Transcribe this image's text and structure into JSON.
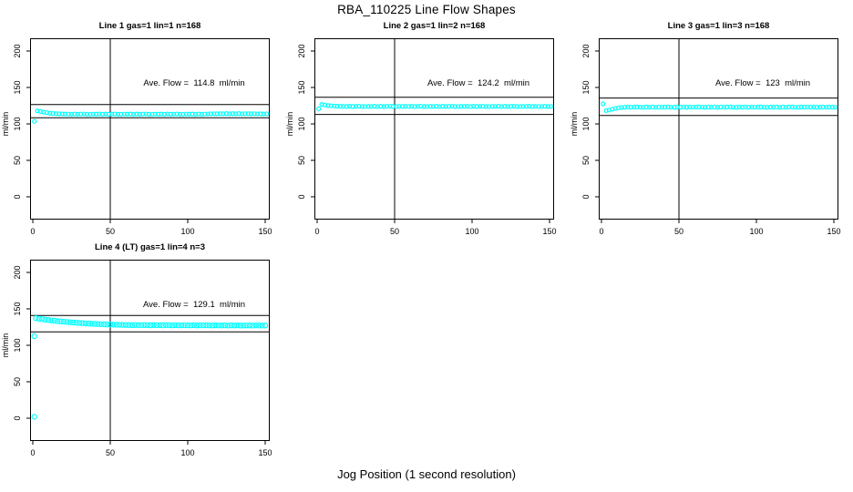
{
  "page_title": "RBA_110225  Line Flow Shapes",
  "x_axis_label": "Jog Position (1 second resolution)",
  "colors": {
    "point_color": "#00FFFF",
    "line_color": "#000000",
    "background": "#FFFFFF",
    "text_color": "#000000"
  },
  "chart_data": [
    {
      "type": "scatter",
      "title": "Line 1 gas=1 lin=1 n=168",
      "ave_flow_label": "Ave. Flow =  114.8  ml/min",
      "ave_flow_ml_min": 114.8,
      "ylabel": "ml/min",
      "xlim": [
        0,
        150
      ],
      "ylim": [
        0,
        200
      ],
      "xticks": [
        0,
        50,
        100,
        150
      ],
      "yticks": [
        0,
        50,
        100,
        150,
        200
      ],
      "vline_x": 50,
      "hlines": [
        126.5,
        108.5
      ],
      "marker": "open-circle",
      "marker_size_px": 2,
      "legend": "none",
      "grid": "off",
      "points": [
        [
          1,
          103.5
        ],
        [
          3,
          118.0
        ],
        [
          5,
          117.0
        ],
        [
          7,
          116.1
        ],
        [
          9,
          115.4
        ],
        [
          11,
          114.8
        ],
        [
          13,
          114.4
        ],
        [
          15,
          114.1
        ],
        [
          17,
          113.9
        ],
        [
          19,
          113.7
        ],
        [
          21,
          113.6
        ],
        [
          23,
          113.5
        ],
        [
          25,
          113.2
        ],
        [
          27,
          113.6
        ],
        [
          29,
          113.3
        ],
        [
          31,
          113.5
        ],
        [
          33,
          113.7
        ],
        [
          35,
          113.3
        ],
        [
          37,
          113.2
        ],
        [
          39,
          113.5
        ],
        [
          41,
          113.4
        ],
        [
          43,
          113.6
        ],
        [
          45,
          113.2
        ],
        [
          47,
          113.6
        ],
        [
          49,
          113.3
        ],
        [
          51,
          113.5
        ],
        [
          53,
          113.7
        ],
        [
          55,
          113.3
        ],
        [
          57,
          113.2
        ],
        [
          59,
          113.5
        ],
        [
          61,
          113.4
        ],
        [
          63,
          113.6
        ],
        [
          65,
          113.2
        ],
        [
          67,
          113.6
        ],
        [
          69,
          113.3
        ],
        [
          71,
          113.5
        ],
        [
          73,
          113.7
        ],
        [
          75,
          113.3
        ],
        [
          77,
          113.2
        ],
        [
          79,
          113.5
        ],
        [
          81,
          113.4
        ],
        [
          83,
          113.6
        ],
        [
          85,
          113.2
        ],
        [
          87,
          113.6
        ],
        [
          89,
          113.3
        ],
        [
          91,
          113.5
        ],
        [
          93,
          113.7
        ],
        [
          95,
          113.3
        ],
        [
          97,
          113.2
        ],
        [
          99,
          113.5
        ],
        [
          101,
          113.4
        ],
        [
          103,
          113.6
        ],
        [
          105,
          113.2
        ],
        [
          107,
          113.6
        ],
        [
          109,
          113.3
        ],
        [
          111,
          113.5
        ],
        [
          113,
          113.7
        ],
        [
          115,
          113.8
        ],
        [
          117,
          114.0
        ],
        [
          119,
          113.9
        ],
        [
          121,
          114.1
        ],
        [
          123,
          114.0
        ],
        [
          125,
          114.2
        ],
        [
          127,
          113.9
        ],
        [
          129,
          114.1
        ],
        [
          131,
          114.0
        ],
        [
          133,
          114.2
        ],
        [
          135,
          113.8
        ],
        [
          137,
          114.0
        ],
        [
          139,
          114.1
        ],
        [
          141,
          113.9
        ],
        [
          143,
          114.0
        ],
        [
          145,
          113.8
        ],
        [
          147,
          113.9
        ],
        [
          149,
          113.7
        ],
        [
          151,
          113.8
        ]
      ]
    },
    {
      "type": "scatter",
      "title": "Line 2 gas=1 lin=2 n=168",
      "ave_flow_label": "Ave. Flow =  124.2  ml/min",
      "ave_flow_ml_min": 124.2,
      "ylabel": "ml/min",
      "xlim": [
        0,
        150
      ],
      "ylim": [
        0,
        200
      ],
      "xticks": [
        0,
        50,
        100,
        150
      ],
      "yticks": [
        0,
        50,
        100,
        150,
        200
      ],
      "vline_x": 50,
      "hlines": [
        136.5,
        113.0
      ],
      "marker": "open-circle",
      "marker_size_px": 2,
      "legend": "none",
      "grid": "off",
      "points": [
        [
          1,
          120.8
        ],
        [
          3,
          126.7
        ],
        [
          5,
          125.9
        ],
        [
          7,
          125.3
        ],
        [
          9,
          124.9
        ],
        [
          11,
          124.6
        ],
        [
          13,
          124.4
        ],
        [
          15,
          124.2
        ],
        [
          17,
          124.1
        ],
        [
          19,
          123.8
        ],
        [
          21,
          124.2
        ],
        [
          23,
          123.9
        ],
        [
          25,
          124.1
        ],
        [
          27,
          124.3
        ],
        [
          29,
          123.9
        ],
        [
          31,
          123.8
        ],
        [
          33,
          124.1
        ],
        [
          35,
          124.0
        ],
        [
          37,
          124.2
        ],
        [
          39,
          123.8
        ],
        [
          41,
          124.2
        ],
        [
          43,
          123.9
        ],
        [
          45,
          124.1
        ],
        [
          47,
          124.3
        ],
        [
          49,
          123.9
        ],
        [
          51,
          123.8
        ],
        [
          53,
          124.1
        ],
        [
          55,
          124.0
        ],
        [
          57,
          124.2
        ],
        [
          59,
          123.8
        ],
        [
          61,
          124.2
        ],
        [
          63,
          123.9
        ],
        [
          65,
          124.1
        ],
        [
          67,
          124.3
        ],
        [
          69,
          123.9
        ],
        [
          71,
          123.8
        ],
        [
          73,
          124.1
        ],
        [
          75,
          124.0
        ],
        [
          77,
          124.2
        ],
        [
          79,
          123.8
        ],
        [
          81,
          124.2
        ],
        [
          83,
          123.9
        ],
        [
          85,
          124.1
        ],
        [
          87,
          124.3
        ],
        [
          89,
          123.9
        ],
        [
          91,
          123.8
        ],
        [
          93,
          124.1
        ],
        [
          95,
          124.0
        ],
        [
          97,
          124.2
        ],
        [
          99,
          123.8
        ],
        [
          101,
          124.2
        ],
        [
          103,
          123.9
        ],
        [
          105,
          124.1
        ],
        [
          107,
          124.3
        ],
        [
          109,
          123.9
        ],
        [
          111,
          123.8
        ],
        [
          113,
          124.1
        ],
        [
          115,
          124.0
        ],
        [
          117,
          124.2
        ],
        [
          119,
          123.8
        ],
        [
          121,
          124.2
        ],
        [
          123,
          123.9
        ],
        [
          125,
          124.1
        ],
        [
          127,
          124.3
        ],
        [
          129,
          123.9
        ],
        [
          131,
          123.8
        ],
        [
          133,
          124.1
        ],
        [
          135,
          124.0
        ],
        [
          137,
          124.2
        ],
        [
          139,
          123.9
        ],
        [
          141,
          124.1
        ],
        [
          143,
          123.8
        ],
        [
          145,
          124.0
        ],
        [
          147,
          124.2
        ],
        [
          149,
          123.9
        ],
        [
          151,
          124.0
        ]
      ]
    },
    {
      "type": "scatter",
      "title": "Line 3 gas=1 lin=3 n=168",
      "ave_flow_label": "Ave. Flow =  123  ml/min",
      "ave_flow_ml_min": 123,
      "ylabel": "ml/min",
      "xlim": [
        0,
        150
      ],
      "ylim": [
        0,
        200
      ],
      "xticks": [
        0,
        50,
        100,
        150
      ],
      "yticks": [
        0,
        50,
        100,
        150,
        200
      ],
      "vline_x": 50,
      "hlines": [
        135.5,
        111.5
      ],
      "marker": "open-circle",
      "marker_size_px": 2,
      "legend": "none",
      "grid": "off",
      "points": [
        [
          1,
          127.5
        ],
        [
          3,
          118.2
        ],
        [
          5,
          119.0
        ],
        [
          7,
          120.2
        ],
        [
          9,
          121.3
        ],
        [
          11,
          122.1
        ],
        [
          13,
          122.6
        ],
        [
          15,
          122.8
        ],
        [
          17,
          123.2
        ],
        [
          19,
          122.9
        ],
        [
          21,
          123.1
        ],
        [
          23,
          123.3
        ],
        [
          25,
          122.9
        ],
        [
          27,
          122.8
        ],
        [
          29,
          123.1
        ],
        [
          31,
          123.0
        ],
        [
          33,
          123.2
        ],
        [
          35,
          122.8
        ],
        [
          37,
          123.2
        ],
        [
          39,
          122.9
        ],
        [
          41,
          123.1
        ],
        [
          43,
          123.3
        ],
        [
          45,
          122.9
        ],
        [
          47,
          122.8
        ],
        [
          49,
          123.1
        ],
        [
          51,
          123.0
        ],
        [
          53,
          123.2
        ],
        [
          55,
          122.8
        ],
        [
          57,
          123.2
        ],
        [
          59,
          122.9
        ],
        [
          61,
          123.1
        ],
        [
          63,
          123.3
        ],
        [
          65,
          122.9
        ],
        [
          67,
          122.8
        ],
        [
          69,
          123.1
        ],
        [
          71,
          123.0
        ],
        [
          73,
          123.2
        ],
        [
          75,
          122.8
        ],
        [
          77,
          123.2
        ],
        [
          79,
          122.9
        ],
        [
          81,
          123.1
        ],
        [
          83,
          123.3
        ],
        [
          85,
          122.9
        ],
        [
          87,
          122.8
        ],
        [
          89,
          123.1
        ],
        [
          91,
          123.0
        ],
        [
          93,
          123.2
        ],
        [
          95,
          122.8
        ],
        [
          97,
          123.2
        ],
        [
          99,
          122.9
        ],
        [
          101,
          123.1
        ],
        [
          103,
          123.3
        ],
        [
          105,
          122.9
        ],
        [
          107,
          122.8
        ],
        [
          109,
          123.1
        ],
        [
          111,
          123.0
        ],
        [
          113,
          123.2
        ],
        [
          115,
          122.8
        ],
        [
          117,
          123.2
        ],
        [
          119,
          122.9
        ],
        [
          121,
          123.1
        ],
        [
          123,
          123.3
        ],
        [
          125,
          122.9
        ],
        [
          127,
          122.8
        ],
        [
          129,
          123.1
        ],
        [
          131,
          123.0
        ],
        [
          133,
          123.2
        ],
        [
          135,
          122.9
        ],
        [
          137,
          123.1
        ],
        [
          139,
          122.8
        ],
        [
          141,
          123.0
        ],
        [
          143,
          123.2
        ],
        [
          145,
          122.9
        ],
        [
          147,
          123.1
        ],
        [
          149,
          123.0
        ],
        [
          151,
          122.9
        ]
      ]
    },
    {
      "type": "scatter",
      "title": "Line 4 (LT) gas=1 lin=4 n=3",
      "ave_flow_label": "Ave. Flow =  129.1  ml/min",
      "ave_flow_ml_min": 129.1,
      "ylabel": "ml/min",
      "xlim": [
        0,
        150
      ],
      "ylim": [
        0,
        200
      ],
      "xticks": [
        0,
        50,
        100,
        150
      ],
      "yticks": [
        0,
        50,
        100,
        150,
        200
      ],
      "vline_x": 50,
      "hlines": [
        141.0,
        118.5
      ],
      "marker": "open-circle",
      "marker_size_px": 2.6,
      "legend": "none",
      "grid": "off",
      "points": [
        [
          1,
          112.5
        ],
        [
          1,
          2.0
        ],
        [
          2,
          137.2
        ],
        [
          4,
          136.5
        ],
        [
          6,
          135.9
        ],
        [
          8,
          135.3
        ],
        [
          10,
          134.7
        ],
        [
          12,
          134.2
        ],
        [
          14,
          133.7
        ],
        [
          16,
          133.2
        ],
        [
          18,
          132.8
        ],
        [
          20,
          132.4
        ],
        [
          22,
          132.0
        ],
        [
          24,
          131.6
        ],
        [
          26,
          131.3
        ],
        [
          28,
          131.0
        ],
        [
          30,
          130.7
        ],
        [
          32,
          130.4
        ],
        [
          34,
          130.1
        ],
        [
          36,
          129.9
        ],
        [
          38,
          129.6
        ],
        [
          40,
          129.4
        ],
        [
          42,
          129.2
        ],
        [
          44,
          129.0
        ],
        [
          46,
          128.8
        ],
        [
          48,
          128.7
        ],
        [
          50,
          128.5
        ],
        [
          52,
          128.4
        ],
        [
          54,
          128.2
        ],
        [
          56,
          128.1
        ],
        [
          58,
          128.0
        ],
        [
          60,
          127.9
        ],
        [
          62,
          127.8
        ],
        [
          64,
          127.6
        ],
        [
          66,
          127.9
        ],
        [
          68,
          127.7
        ],
        [
          70,
          127.5
        ],
        [
          72,
          127.8
        ],
        [
          74,
          127.6
        ],
        [
          76,
          127.4
        ],
        [
          78,
          127.7
        ],
        [
          80,
          127.5
        ],
        [
          82,
          127.6
        ],
        [
          84,
          127.4
        ],
        [
          86,
          127.7
        ],
        [
          88,
          127.5
        ],
        [
          90,
          127.3
        ],
        [
          92,
          127.6
        ],
        [
          94,
          127.4
        ],
        [
          96,
          127.3
        ],
        [
          98,
          127.5
        ],
        [
          100,
          127.4
        ],
        [
          102,
          127.3
        ],
        [
          104,
          127.5
        ],
        [
          106,
          127.2
        ],
        [
          108,
          127.4
        ],
        [
          110,
          127.3
        ],
        [
          112,
          127.5
        ],
        [
          114,
          127.3
        ],
        [
          116,
          127.2
        ],
        [
          118,
          127.4
        ],
        [
          120,
          127.3
        ],
        [
          122,
          127.2
        ],
        [
          124,
          127.4
        ],
        [
          126,
          127.1
        ],
        [
          128,
          127.3
        ],
        [
          130,
          127.2
        ],
        [
          132,
          127.4
        ],
        [
          134,
          127.2
        ],
        [
          136,
          127.1
        ],
        [
          138,
          127.3
        ],
        [
          140,
          127.2
        ],
        [
          142,
          127.1
        ],
        [
          144,
          127.3
        ],
        [
          146,
          127.2
        ],
        [
          148,
          127.1
        ],
        [
          150,
          127.2
        ]
      ]
    }
  ]
}
